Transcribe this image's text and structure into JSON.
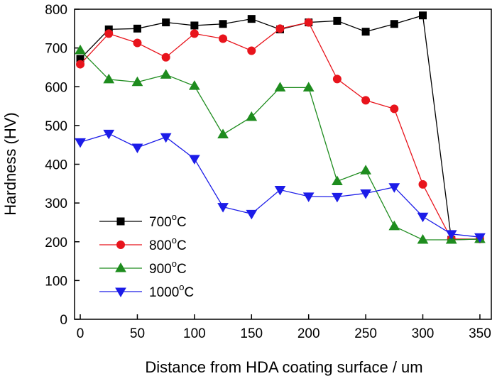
{
  "chart_data": {
    "type": "line",
    "xlabel": "Distance from HDA coating surface / um",
    "ylabel": "Hardness (HV)",
    "xlim": [
      -5,
      360
    ],
    "ylim": [
      0,
      800
    ],
    "x_ticks": [
      0,
      50,
      100,
      150,
      200,
      250,
      300,
      350
    ],
    "y_ticks": [
      0,
      100,
      200,
      300,
      400,
      500,
      600,
      700,
      800
    ],
    "grid": false,
    "legend_position": "bottom-left",
    "series": [
      {
        "name": "700°C",
        "legend_base": "700",
        "legend_sup": "o",
        "legend_suffix": "C",
        "color": "#000000",
        "marker": "square",
        "x": [
          0,
          25,
          50,
          75,
          100,
          125,
          150,
          175,
          200,
          225,
          250,
          275,
          300,
          325,
          350
        ],
        "values": [
          672,
          748,
          750,
          766,
          758,
          762,
          775,
          748,
          766,
          770,
          742,
          762,
          784,
          205,
          207
        ]
      },
      {
        "name": "800°C",
        "legend_base": "800",
        "legend_sup": "o",
        "legend_suffix": "C",
        "color": "#e8141c",
        "marker": "circle",
        "x": [
          0,
          25,
          50,
          75,
          100,
          125,
          150,
          175,
          200,
          225,
          250,
          275,
          300,
          325,
          350
        ],
        "values": [
          658,
          737,
          713,
          676,
          737,
          724,
          693,
          750,
          766,
          620,
          565,
          543,
          348,
          207,
          207
        ]
      },
      {
        "name": "900°C",
        "legend_base": "900",
        "legend_sup": "o",
        "legend_suffix": "C",
        "color": "#1e8c1e",
        "marker": "triangle-up",
        "x": [
          0,
          25,
          50,
          75,
          100,
          125,
          150,
          175,
          200,
          225,
          250,
          275,
          300,
          325,
          350
        ],
        "values": [
          694,
          619,
          612,
          631,
          602,
          477,
          522,
          598,
          598,
          356,
          384,
          240,
          205,
          205,
          207
        ]
      },
      {
        "name": "1000°C",
        "legend_base": "1000",
        "legend_sup": "o",
        "legend_suffix": "C",
        "color": "#1c1ce8",
        "marker": "triangle-down",
        "x": [
          0,
          25,
          50,
          75,
          100,
          125,
          150,
          175,
          200,
          225,
          250,
          275,
          300,
          325,
          350
        ],
        "values": [
          457,
          479,
          443,
          470,
          414,
          290,
          272,
          334,
          317,
          316,
          325,
          341,
          265,
          220,
          212
        ]
      }
    ]
  }
}
